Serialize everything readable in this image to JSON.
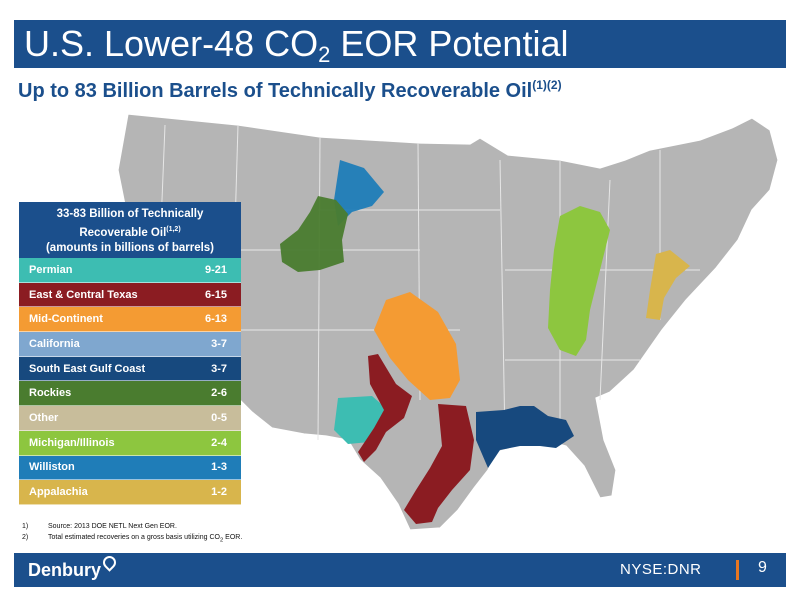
{
  "header": {
    "title_main": "U.S. Lower-48 CO",
    "title_sub": "2",
    "title_end": " EOR Potential",
    "subtitle": "Up to 83 Billion Barrels of Technically Recoverable Oil",
    "subtitle_refs": "(1)(2)"
  },
  "legend": {
    "line1": "33-83 Billion of Technically",
    "line2": "Recoverable Oil",
    "line2_refs": "(1,2)",
    "line3": "(amounts in billions of barrels)",
    "rows": [
      {
        "label": "Permian",
        "value": "9-21",
        "color": "#3dbdb2"
      },
      {
        "label": "East & Central Texas",
        "value": "6-15",
        "color": "#8b1c22"
      },
      {
        "label": "Mid-Continent",
        "value": "6-13",
        "color": "#f49b33"
      },
      {
        "label": "California",
        "value": "3-7",
        "color": "#7fa7cf"
      },
      {
        "label": "South East Gulf Coast",
        "value": "3-7",
        "color": "#17497e"
      },
      {
        "label": "Rockies",
        "value": "2-6",
        "color": "#4a7c2f"
      },
      {
        "label": "Other",
        "value": "0-5",
        "color": "#c8bd9b"
      },
      {
        "label": "Michigan/Illinois",
        "value": "2-4",
        "color": "#8dc63f"
      },
      {
        "label": "Williston",
        "value": "1-3",
        "color": "#1f7db8"
      },
      {
        "label": "Appalachia",
        "value": "1-2",
        "color": "#d8b54c"
      }
    ]
  },
  "footnotes": [
    {
      "num": "1)",
      "text": "Source: 2013 DOE NETL Next Gen EOR."
    },
    {
      "num": "2)",
      "text_before": "Total estimated recoveries on a gross basis utilizing CO",
      "text_sub": "2",
      "text_after": " EOR."
    }
  ],
  "footer": {
    "logo": "Denbury",
    "ticker": "NYSE:DNR",
    "page": "9",
    "accent": "#e87722"
  },
  "theme": {
    "primary": "#1b4f8c",
    "map_land": "#b5b5b5"
  }
}
